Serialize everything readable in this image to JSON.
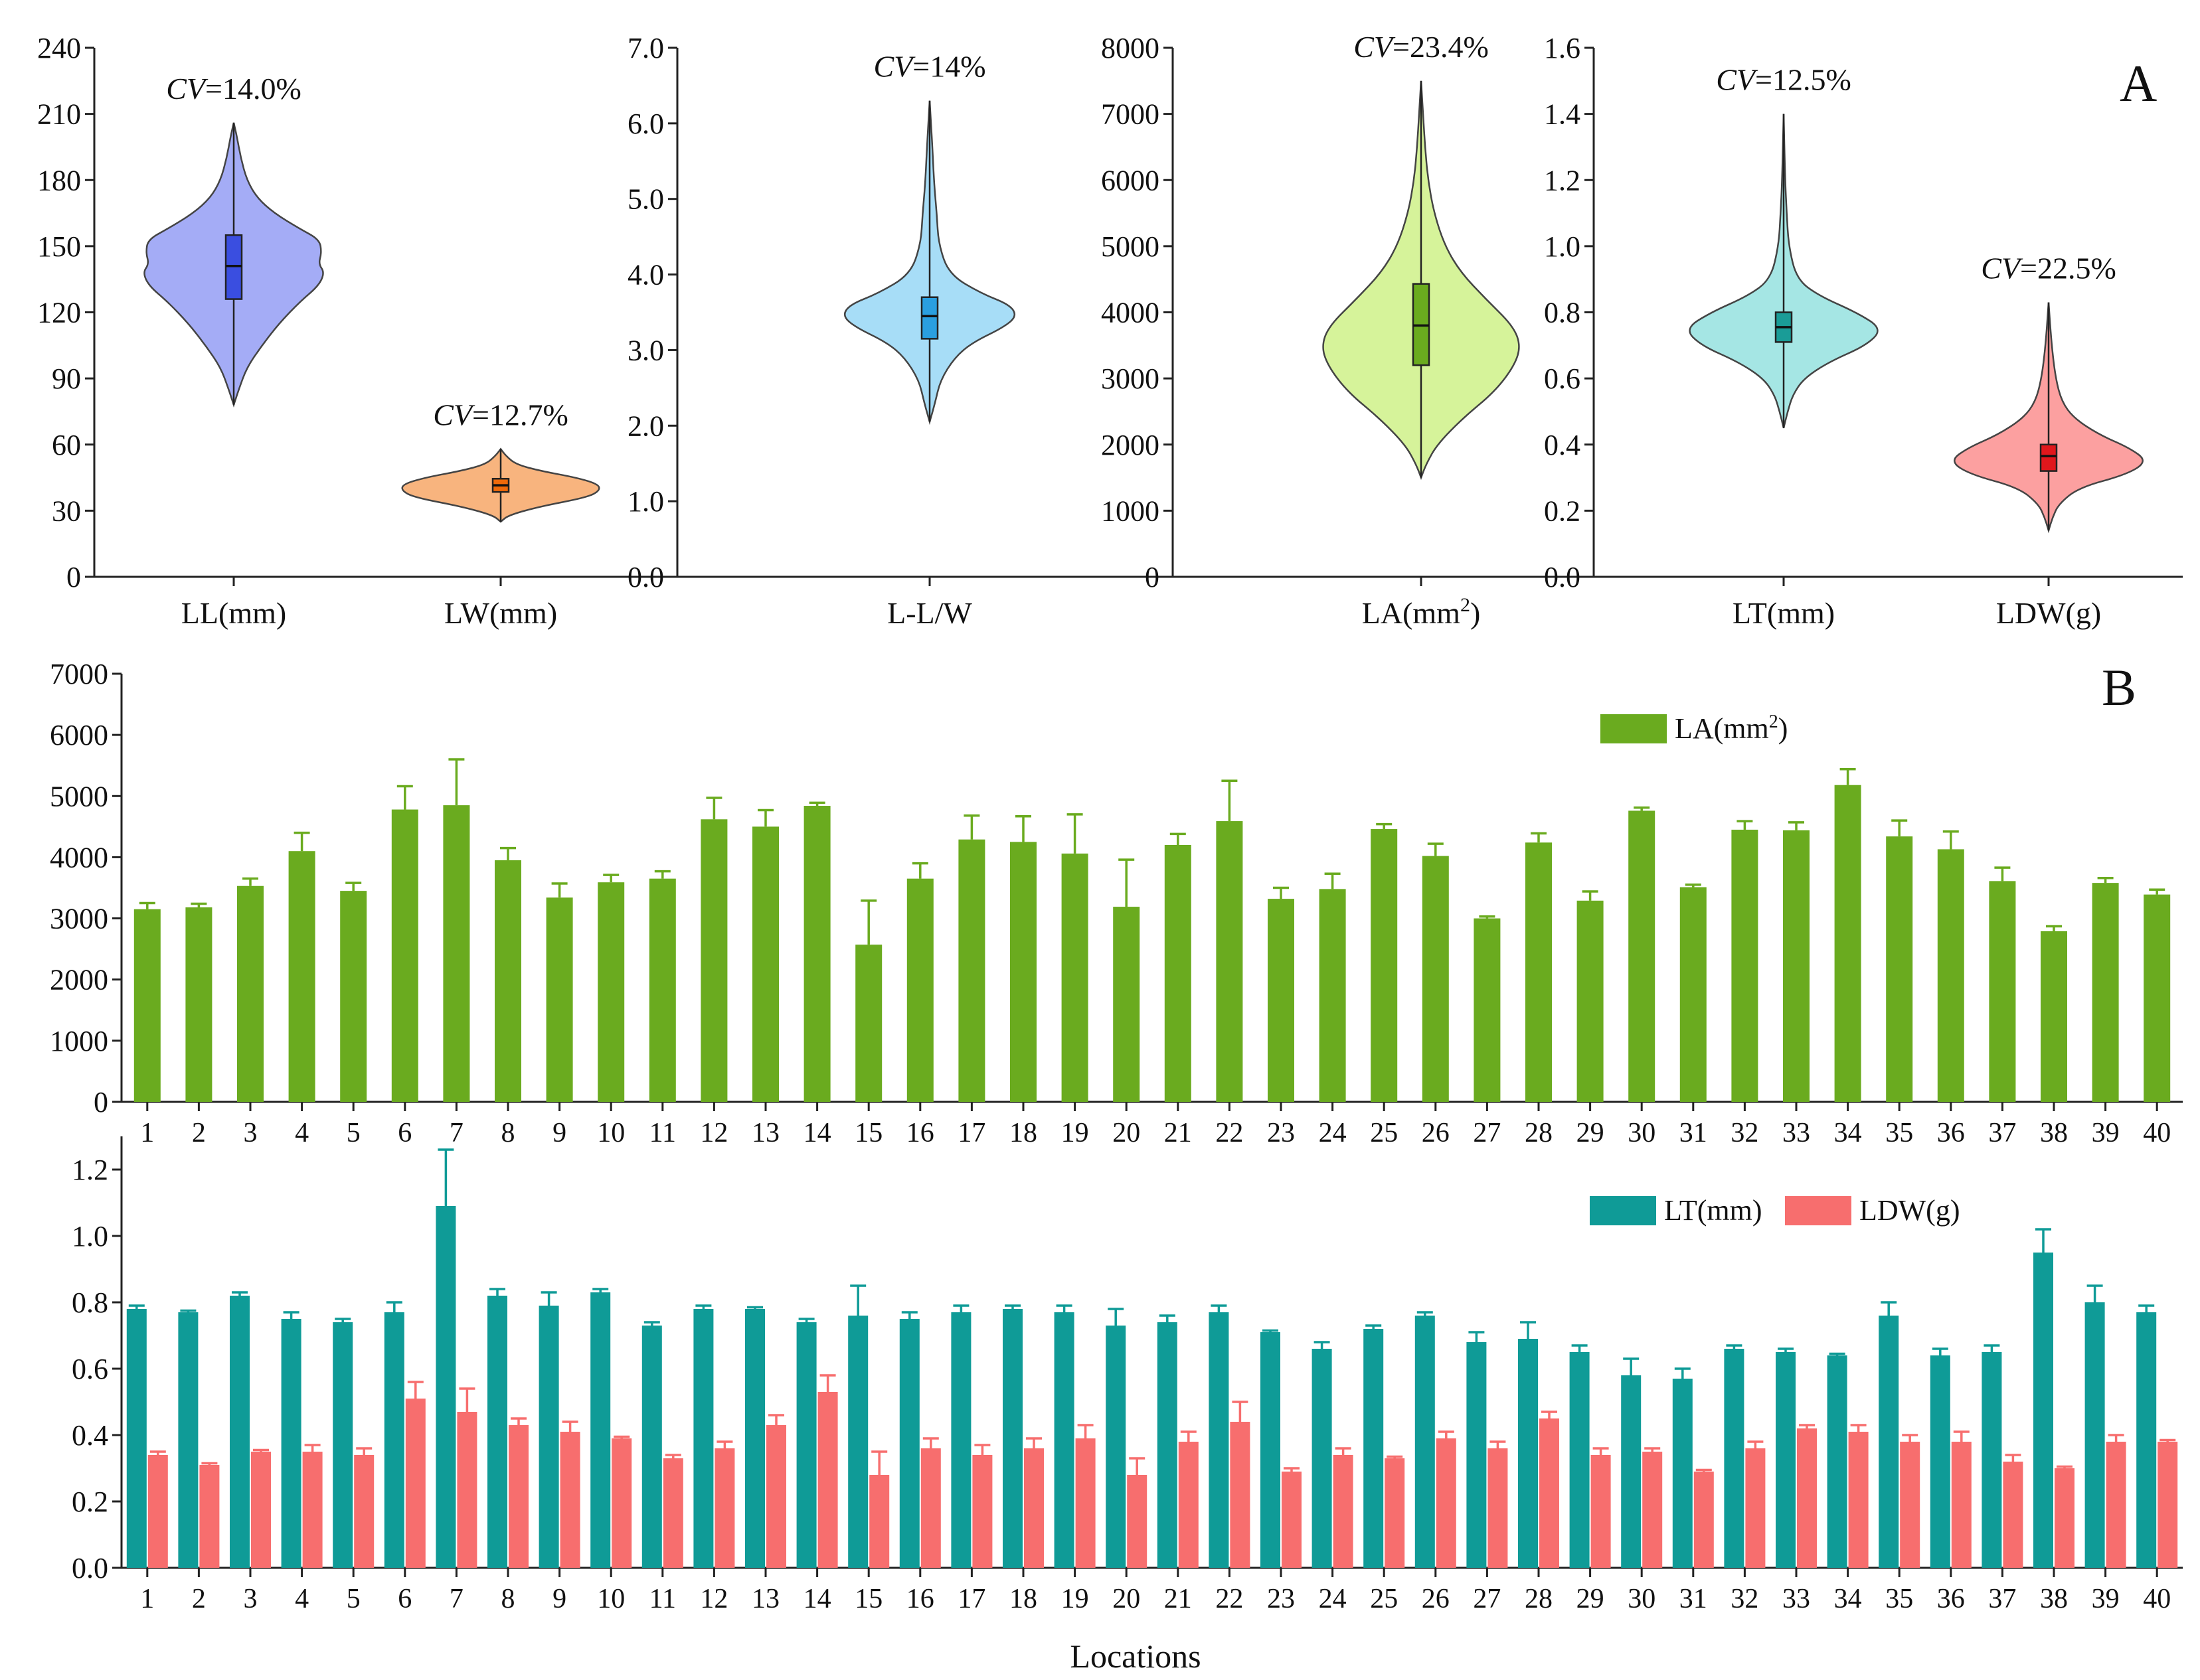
{
  "panel_labels": {
    "a": "A",
    "b": "B"
  },
  "x_axis_title": "Locations",
  "chart_data": [
    {
      "id": "A1",
      "type": "violin",
      "ylim": [
        0,
        240
      ],
      "yticks": [
        0,
        30,
        60,
        90,
        120,
        150,
        180,
        210,
        240
      ],
      "ytick_labels": [
        "0",
        "30",
        "60",
        "90",
        "120",
        "150",
        "180",
        "210",
        "240"
      ],
      "violins": [
        {
          "label": "LL(mm)",
          "cv": "=14.0%",
          "color": "#a4acf6",
          "box_color": "#3a4ee0",
          "min": 78,
          "max": 206,
          "q1": 126,
          "median": 141,
          "q3": 155,
          "whisker_low": 94,
          "whisker_high": 188,
          "width_profile": [
            [
              78,
              0.0
            ],
            [
              85,
              0.05
            ],
            [
              95,
              0.13
            ],
            [
              105,
              0.28
            ],
            [
              115,
              0.45
            ],
            [
              125,
              0.66
            ],
            [
              132,
              0.84
            ],
            [
              138,
              0.9
            ],
            [
              142,
              0.84
            ],
            [
              147,
              0.87
            ],
            [
              153,
              0.85
            ],
            [
              158,
              0.65
            ],
            [
              165,
              0.4
            ],
            [
              172,
              0.23
            ],
            [
              180,
              0.13
            ],
            [
              190,
              0.07
            ],
            [
              200,
              0.03
            ],
            [
              206,
              0.0
            ]
          ]
        },
        {
          "label": "LW(mm)",
          "cv": "=12.7%",
          "color": "#f8b47e",
          "box_color": "#ef6a0a",
          "min": 25,
          "max": 58,
          "q1": 38.5,
          "median": 41.5,
          "q3": 44.5,
          "whisker_low": 30,
          "whisker_high": 53,
          "width_profile": [
            [
              25,
              0.0
            ],
            [
              28,
              0.08
            ],
            [
              32,
              0.4
            ],
            [
              36,
              0.85
            ],
            [
              39,
              0.98
            ],
            [
              42,
              0.97
            ],
            [
              45,
              0.75
            ],
            [
              48,
              0.4
            ],
            [
              51,
              0.15
            ],
            [
              55,
              0.05
            ],
            [
              58,
              0.0
            ]
          ]
        }
      ]
    },
    {
      "id": "A2",
      "type": "violin",
      "ylim": [
        0,
        7
      ],
      "yticks": [
        0,
        1,
        2,
        3,
        4,
        5,
        6,
        7
      ],
      "ytick_labels": [
        "0.0",
        "1.0",
        "2.0",
        "3.0",
        "4.0",
        "5.0",
        "6.0",
        "7.0"
      ],
      "violins": [
        {
          "label": "L-L/W",
          "cv": "=14%",
          "color": "#a7ddf7",
          "box_color": "#2a9fe0",
          "min": 2.05,
          "max": 6.3,
          "q1": 3.15,
          "median": 3.45,
          "q3": 3.7,
          "whisker_low": 2.6,
          "whisker_high": 4.6,
          "width_profile": [
            [
              2.05,
              0.0
            ],
            [
              2.3,
              0.06
            ],
            [
              2.6,
              0.12
            ],
            [
              2.9,
              0.28
            ],
            [
              3.1,
              0.48
            ],
            [
              3.3,
              0.83
            ],
            [
              3.45,
              0.98
            ],
            [
              3.6,
              0.9
            ],
            [
              3.75,
              0.58
            ],
            [
              4.0,
              0.22
            ],
            [
              4.4,
              0.1
            ],
            [
              4.8,
              0.08
            ],
            [
              5.2,
              0.05
            ],
            [
              5.7,
              0.03
            ],
            [
              6.3,
              0.0
            ]
          ]
        }
      ]
    },
    {
      "id": "A3",
      "type": "violin",
      "ylim": [
        0,
        8000
      ],
      "yticks": [
        0,
        1000,
        2000,
        3000,
        4000,
        5000,
        6000,
        7000,
        8000
      ],
      "ytick_labels": [
        "0",
        "1000",
        "2000",
        "3000",
        "4000",
        "5000",
        "6000",
        "7000",
        "8000"
      ],
      "violins": [
        {
          "label": "LA(mm",
          "label_sup": "2",
          "label_end": ")",
          "cv": "=23.4%",
          "color": "#d6f39a",
          "box_color": "#6aab1f",
          "min": 1500,
          "max": 7500,
          "q1": 3200,
          "median": 3800,
          "q3": 4430,
          "whisker_low": 1650,
          "whisker_high": 6100,
          "width_profile": [
            [
              1500,
              0.0
            ],
            [
              1700,
              0.05
            ],
            [
              2000,
              0.16
            ],
            [
              2400,
              0.42
            ],
            [
              2800,
              0.74
            ],
            [
              3200,
              0.94
            ],
            [
              3500,
              1.0
            ],
            [
              3800,
              0.92
            ],
            [
              4200,
              0.65
            ],
            [
              4600,
              0.4
            ],
            [
              5000,
              0.24
            ],
            [
              5500,
              0.13
            ],
            [
              6000,
              0.07
            ],
            [
              6500,
              0.04
            ],
            [
              7000,
              0.02
            ],
            [
              7500,
              0.0
            ]
          ]
        }
      ]
    },
    {
      "id": "A4",
      "type": "violin",
      "ylim": [
        0,
        1.6
      ],
      "yticks": [
        0,
        0.2,
        0.4,
        0.6,
        0.8,
        1.0,
        1.2,
        1.4,
        1.6
      ],
      "ytick_labels": [
        "0.0",
        "0.2",
        "0.4",
        "0.6",
        "0.8",
        "1.0",
        "1.2",
        "1.4",
        "1.6"
      ],
      "violins": [
        {
          "label": "LT(mm)",
          "cv": "=12.5%",
          "color": "#a5e6e4",
          "box_color": "#1a9c97",
          "min": 0.45,
          "max": 1.4,
          "q1": 0.71,
          "median": 0.755,
          "q3": 0.8,
          "whisker_low": 0.56,
          "whisker_high": 0.92,
          "width_profile": [
            [
              0.45,
              0.0
            ],
            [
              0.5,
              0.04
            ],
            [
              0.55,
              0.09
            ],
            [
              0.6,
              0.2
            ],
            [
              0.65,
              0.45
            ],
            [
              0.7,
              0.82
            ],
            [
              0.75,
              0.98
            ],
            [
              0.8,
              0.72
            ],
            [
              0.85,
              0.35
            ],
            [
              0.9,
              0.13
            ],
            [
              1.0,
              0.05
            ],
            [
              1.1,
              0.03
            ],
            [
              1.2,
              0.015
            ],
            [
              1.4,
              0.0
            ]
          ]
        },
        {
          "label": "LDW(g)",
          "cv": "=22.5%",
          "color": "#fca0a0",
          "box_color": "#e0171c",
          "min": 0.14,
          "max": 0.83,
          "q1": 0.32,
          "median": 0.365,
          "q3": 0.4,
          "whisker_low": 0.2,
          "whisker_high": 0.54,
          "width_profile": [
            [
              0.14,
              0.0
            ],
            [
              0.18,
              0.04
            ],
            [
              0.22,
              0.1
            ],
            [
              0.27,
              0.3
            ],
            [
              0.31,
              0.78
            ],
            [
              0.35,
              0.98
            ],
            [
              0.39,
              0.8
            ],
            [
              0.43,
              0.5
            ],
            [
              0.48,
              0.25
            ],
            [
              0.53,
              0.13
            ],
            [
              0.6,
              0.07
            ],
            [
              0.7,
              0.03
            ],
            [
              0.83,
              0.0
            ]
          ]
        }
      ]
    },
    {
      "id": "B1",
      "type": "bar",
      "ylim": [
        0,
        7000
      ],
      "yticks": [
        0,
        1000,
        2000,
        3000,
        4000,
        5000,
        6000,
        7000
      ],
      "ytick_labels": [
        "0",
        "1000",
        "2000",
        "3000",
        "4000",
        "5000",
        "6000",
        "7000"
      ],
      "categories": [
        "1",
        "2",
        "3",
        "4",
        "5",
        "6",
        "7",
        "8",
        "9",
        "10",
        "11",
        "12",
        "13",
        "14",
        "15",
        "16",
        "17",
        "18",
        "19",
        "20",
        "21",
        "22",
        "23",
        "24",
        "25",
        "26",
        "27",
        "28",
        "29",
        "30",
        "31",
        "32",
        "33",
        "34",
        "35",
        "36",
        "37",
        "38",
        "39",
        "40"
      ],
      "legend": {
        "placement": "top-center"
      },
      "series": [
        {
          "name": "LA(mm",
          "name_sup": "2",
          "name_end": ")",
          "color": "#6aab1f",
          "values": [
            3150,
            3180,
            3530,
            4100,
            3450,
            4780,
            4850,
            3950,
            3340,
            3590,
            3650,
            4620,
            4500,
            4840,
            2570,
            3650,
            4290,
            4250,
            4060,
            3190,
            4200,
            4590,
            3320,
            3480,
            4460,
            4020,
            3000,
            4240,
            3290,
            4760,
            3510,
            4450,
            4440,
            5180,
            4340,
            4130,
            3610,
            2790,
            3580,
            3390
          ],
          "errors": [
            100,
            60,
            120,
            300,
            130,
            380,
            750,
            200,
            230,
            120,
            120,
            350,
            270,
            50,
            720,
            250,
            390,
            420,
            640,
            770,
            180,
            660,
            180,
            250,
            80,
            200,
            30,
            150,
            150,
            50,
            40,
            140,
            130,
            260,
            260,
            290,
            220,
            80,
            80,
            80
          ]
        }
      ]
    },
    {
      "id": "B2",
      "type": "bar",
      "ylim": [
        0,
        1.3
      ],
      "yticks": [
        0,
        0.2,
        0.4,
        0.6,
        0.8,
        1.0,
        1.2
      ],
      "ytick_labels": [
        "0.0",
        "0.2",
        "0.4",
        "0.6",
        "0.8",
        "1.0",
        "1.2"
      ],
      "categories": [
        "1",
        "2",
        "3",
        "4",
        "5",
        "6",
        "7",
        "8",
        "9",
        "10",
        "11",
        "12",
        "13",
        "14",
        "15",
        "16",
        "17",
        "18",
        "19",
        "20",
        "21",
        "22",
        "23",
        "24",
        "25",
        "26",
        "27",
        "28",
        "29",
        "30",
        "31",
        "32",
        "33",
        "34",
        "35",
        "36",
        "37",
        "38",
        "39",
        "40"
      ],
      "xlabel": "Locations",
      "legend": {
        "placement": "top-right"
      },
      "series": [
        {
          "name": "LT(mm)",
          "color": "#0f9b97",
          "values": [
            0.78,
            0.77,
            0.82,
            0.75,
            0.74,
            0.77,
            1.09,
            0.82,
            0.79,
            0.83,
            0.73,
            0.78,
            0.78,
            0.74,
            0.76,
            0.75,
            0.77,
            0.78,
            0.77,
            0.73,
            0.74,
            0.77,
            0.71,
            0.66,
            0.72,
            0.76,
            0.68,
            0.69,
            0.65,
            0.58,
            0.57,
            0.66,
            0.65,
            0.64,
            0.76,
            0.64,
            0.65,
            0.95,
            0.8,
            0.77
          ],
          "errors": [
            0.01,
            0.005,
            0.01,
            0.02,
            0.01,
            0.03,
            0.17,
            0.02,
            0.04,
            0.01,
            0.01,
            0.01,
            0.005,
            0.01,
            0.09,
            0.02,
            0.02,
            0.01,
            0.02,
            0.05,
            0.02,
            0.02,
            0.005,
            0.02,
            0.01,
            0.01,
            0.03,
            0.05,
            0.02,
            0.05,
            0.03,
            0.01,
            0.01,
            0.005,
            0.04,
            0.02,
            0.02,
            0.07,
            0.05,
            0.02
          ]
        },
        {
          "name": "LDW(g)",
          "color": "#f76e6e",
          "values": [
            0.34,
            0.31,
            0.35,
            0.35,
            0.34,
            0.51,
            0.47,
            0.43,
            0.41,
            0.39,
            0.33,
            0.36,
            0.43,
            0.53,
            0.28,
            0.36,
            0.34,
            0.36,
            0.39,
            0.28,
            0.38,
            0.44,
            0.29,
            0.34,
            0.33,
            0.39,
            0.36,
            0.45,
            0.34,
            0.35,
            0.29,
            0.36,
            0.42,
            0.41,
            0.38,
            0.38,
            0.32,
            0.3,
            0.38,
            0.38
          ],
          "errors": [
            0.01,
            0.005,
            0.005,
            0.02,
            0.02,
            0.05,
            0.07,
            0.02,
            0.03,
            0.005,
            0.01,
            0.02,
            0.03,
            0.05,
            0.07,
            0.03,
            0.03,
            0.03,
            0.04,
            0.05,
            0.03,
            0.06,
            0.01,
            0.02,
            0.005,
            0.02,
            0.02,
            0.02,
            0.02,
            0.01,
            0.005,
            0.02,
            0.01,
            0.02,
            0.02,
            0.03,
            0.02,
            0.005,
            0.02,
            0.005
          ]
        }
      ]
    }
  ]
}
